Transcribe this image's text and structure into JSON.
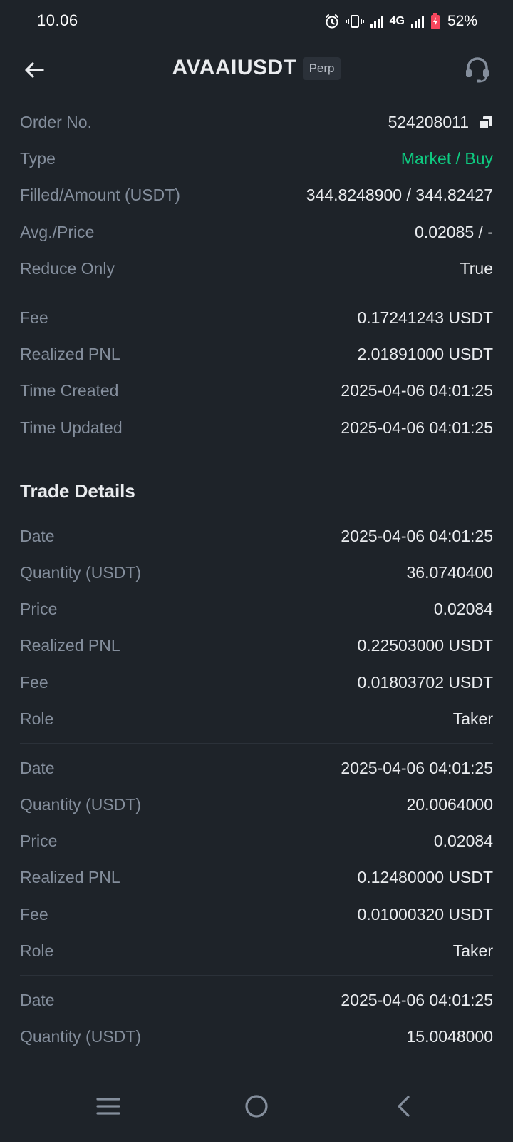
{
  "status_bar": {
    "time": "10.06",
    "network": "4G",
    "battery": "52%",
    "icons": [
      "alarm-icon",
      "vibrate-icon",
      "signal-icon",
      "signal-icon",
      "battery-icon"
    ]
  },
  "header": {
    "title": "AVAAIUSDT",
    "badge": "Perp",
    "icons": [
      "back-arrow-icon",
      "headset-icon"
    ]
  },
  "order": {
    "rows": [
      {
        "label": "Order No.",
        "value": "524208011"
      },
      {
        "label": "Type",
        "value": "Market / Buy"
      },
      {
        "label": "Filled/Amount (USDT)",
        "value": "344.8248900 / 344.82427"
      },
      {
        "label": "Avg./Price",
        "value": "0.02085 / -"
      },
      {
        "label": "Reduce Only",
        "value": "True"
      }
    ],
    "rows2": [
      {
        "label": "Fee",
        "value": "0.17241243 USDT"
      },
      {
        "label": "Realized PNL",
        "value": "2.01891000 USDT"
      },
      {
        "label": "Time Created",
        "value": "2025-04-06 04:01:25"
      },
      {
        "label": "Time Updated",
        "value": "2025-04-06 04:01:25"
      }
    ]
  },
  "trade_details": {
    "title": "Trade Details",
    "trades": [
      [
        {
          "label": "Date",
          "value": "2025-04-06 04:01:25"
        },
        {
          "label": "Quantity (USDT)",
          "value": "36.0740400"
        },
        {
          "label": "Price",
          "value": "0.02084"
        },
        {
          "label": "Realized PNL",
          "value": "0.22503000 USDT"
        },
        {
          "label": "Fee",
          "value": "0.01803702 USDT"
        },
        {
          "label": "Role",
          "value": "Taker"
        }
      ],
      [
        {
          "label": "Date",
          "value": "2025-04-06 04:01:25"
        },
        {
          "label": "Quantity (USDT)",
          "value": "20.0064000"
        },
        {
          "label": "Price",
          "value": "0.02084"
        },
        {
          "label": "Realized PNL",
          "value": "0.12480000 USDT"
        },
        {
          "label": "Fee",
          "value": "0.01000320 USDT"
        },
        {
          "label": "Role",
          "value": "Taker"
        }
      ],
      [
        {
          "label": "Date",
          "value": "2025-04-06 04:01:25"
        },
        {
          "label": "Quantity (USDT)",
          "value": "15.0048000"
        }
      ]
    ]
  },
  "colors": {
    "background": "#1e2329",
    "label": "#848e9c",
    "value": "#eaecef",
    "buy_green": "#0ecb81",
    "battery_low": "#f6465d"
  },
  "nav_bar": {
    "icons": [
      "menu-icon",
      "home-circle-icon",
      "back-chevron-icon"
    ]
  }
}
